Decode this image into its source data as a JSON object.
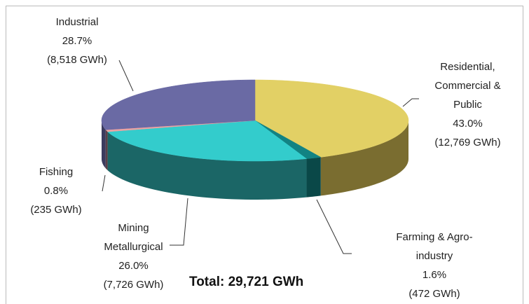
{
  "chart_data": {
    "type": "pie3d",
    "categories": [
      "Residential, Commercial & Public",
      "Farming & Agro-industry",
      "Mining Metallurgical",
      "Fishing",
      "Industrial"
    ],
    "values": [
      43.0,
      1.6,
      26.0,
      0.8,
      28.7
    ],
    "value_labels": [
      "43.0%",
      "1.6%",
      "26.0%",
      "0.8%",
      "28.7%"
    ],
    "energy": [
      12769,
      472,
      7726,
      235,
      8518
    ],
    "energy_labels": [
      "(12,769 GWh)",
      "(472 GWh)",
      "(7,726 GWh)",
      "(235 GWh)",
      "(8,518 GWh)"
    ],
    "colors": [
      "#e2d065",
      "#128383",
      "#33cccc",
      "#e9a3a3",
      "#6a6aa4"
    ],
    "side_colors": [
      "#7a6d30",
      "#0a4848",
      "#1b6666",
      "#5a3f48",
      "#3b3b5e"
    ],
    "annotation": "Total:  29,721 GWh"
  }
}
